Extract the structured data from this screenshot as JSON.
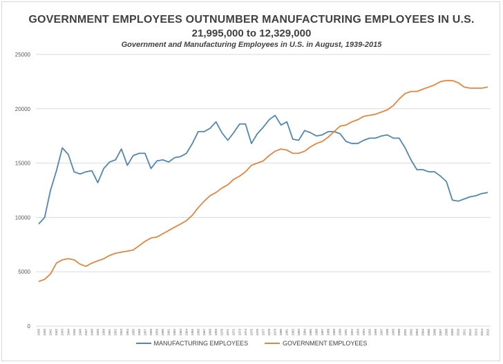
{
  "title": "GOVERNMENT EMPLOYEES OUTNUMBER MANUFACTURING EMPLOYEES IN U.S.",
  "subtitle": "21,995,000 to 12,329,000",
  "caption": "Government and Manufacturing Employees in U.S. in August, 1939-2015",
  "colors": {
    "manufacturing": "#4f86b4",
    "government": "#e3853d",
    "grid": "#d9d9d9",
    "axis_text": "#595959"
  },
  "chart_data": {
    "type": "line",
    "title": "GOVERNMENT EMPLOYEES OUTNUMBER MANUFACTURING EMPLOYEES IN U.S.",
    "subtitle": "21,995,000 to 12,329,000",
    "xlabel": "",
    "ylabel": "",
    "ylim": [
      0,
      25000
    ],
    "yticks": [
      "0",
      "5000",
      "10000",
      "15000",
      "20000",
      "25000"
    ],
    "grid": true,
    "legend": "bottom",
    "x": [
      1939,
      1940,
      1941,
      1942,
      1943,
      1944,
      1945,
      1946,
      1947,
      1948,
      1949,
      1950,
      1951,
      1952,
      1953,
      1954,
      1955,
      1956,
      1957,
      1958,
      1959,
      1960,
      1961,
      1962,
      1963,
      1964,
      1965,
      1966,
      1967,
      1968,
      1969,
      1970,
      1971,
      1972,
      1973,
      1974,
      1975,
      1976,
      1977,
      1978,
      1979,
      1980,
      1981,
      1982,
      1983,
      1984,
      1985,
      1986,
      1987,
      1988,
      1989,
      1990,
      1991,
      1992,
      1993,
      1994,
      1995,
      1996,
      1997,
      1998,
      1999,
      2000,
      2001,
      2002,
      2003,
      2004,
      2005,
      2006,
      2007,
      2008,
      2009,
      2010,
      2011,
      2012,
      2013,
      2014,
      2015
    ],
    "series": [
      {
        "name": "MANUFACTURING EMPLOYEES",
        "values": [
          9400,
          10000,
          12500,
          14300,
          16400,
          15800,
          14200,
          14000,
          14200,
          14300,
          13200,
          14500,
          15100,
          15300,
          16300,
          14800,
          15700,
          15900,
          15900,
          14500,
          15200,
          15300,
          15100,
          15500,
          15600,
          15900,
          16800,
          17900,
          17900,
          18200,
          18800,
          17800,
          17100,
          17800,
          18600,
          18600,
          16800,
          17700,
          18300,
          19000,
          19400,
          18500,
          18800,
          17200,
          17100,
          18000,
          17800,
          17500,
          17600,
          17900,
          17900,
          17700,
          17000,
          16800,
          16800,
          17100,
          17300,
          17300,
          17500,
          17600,
          17300,
          17300,
          16400,
          15300,
          14400,
          14400,
          14200,
          14200,
          13800,
          13300,
          11600,
          11500,
          11700,
          11900,
          12000,
          12200,
          12300
        ]
      },
      {
        "name": "GOVERNMENT EMPLOYEES",
        "values": [
          4100,
          4300,
          4800,
          5800,
          6100,
          6200,
          6100,
          5700,
          5500,
          5800,
          6000,
          6200,
          6500,
          6700,
          6800,
          6900,
          7000,
          7400,
          7800,
          8100,
          8200,
          8500,
          8800,
          9100,
          9400,
          9700,
          10200,
          10900,
          11500,
          12000,
          12300,
          12700,
          13000,
          13500,
          13800,
          14200,
          14800,
          15000,
          15200,
          15700,
          16100,
          16300,
          16200,
          15900,
          15900,
          16100,
          16500,
          16800,
          17000,
          17400,
          17900,
          18400,
          18500,
          18800,
          19000,
          19300,
          19400,
          19500,
          19700,
          19900,
          20300,
          20900,
          21400,
          21600,
          21600,
          21800,
          22000,
          22200,
          22500,
          22600,
          22600,
          22400,
          22000,
          21900,
          21900,
          21900,
          22000
        ]
      }
    ]
  }
}
